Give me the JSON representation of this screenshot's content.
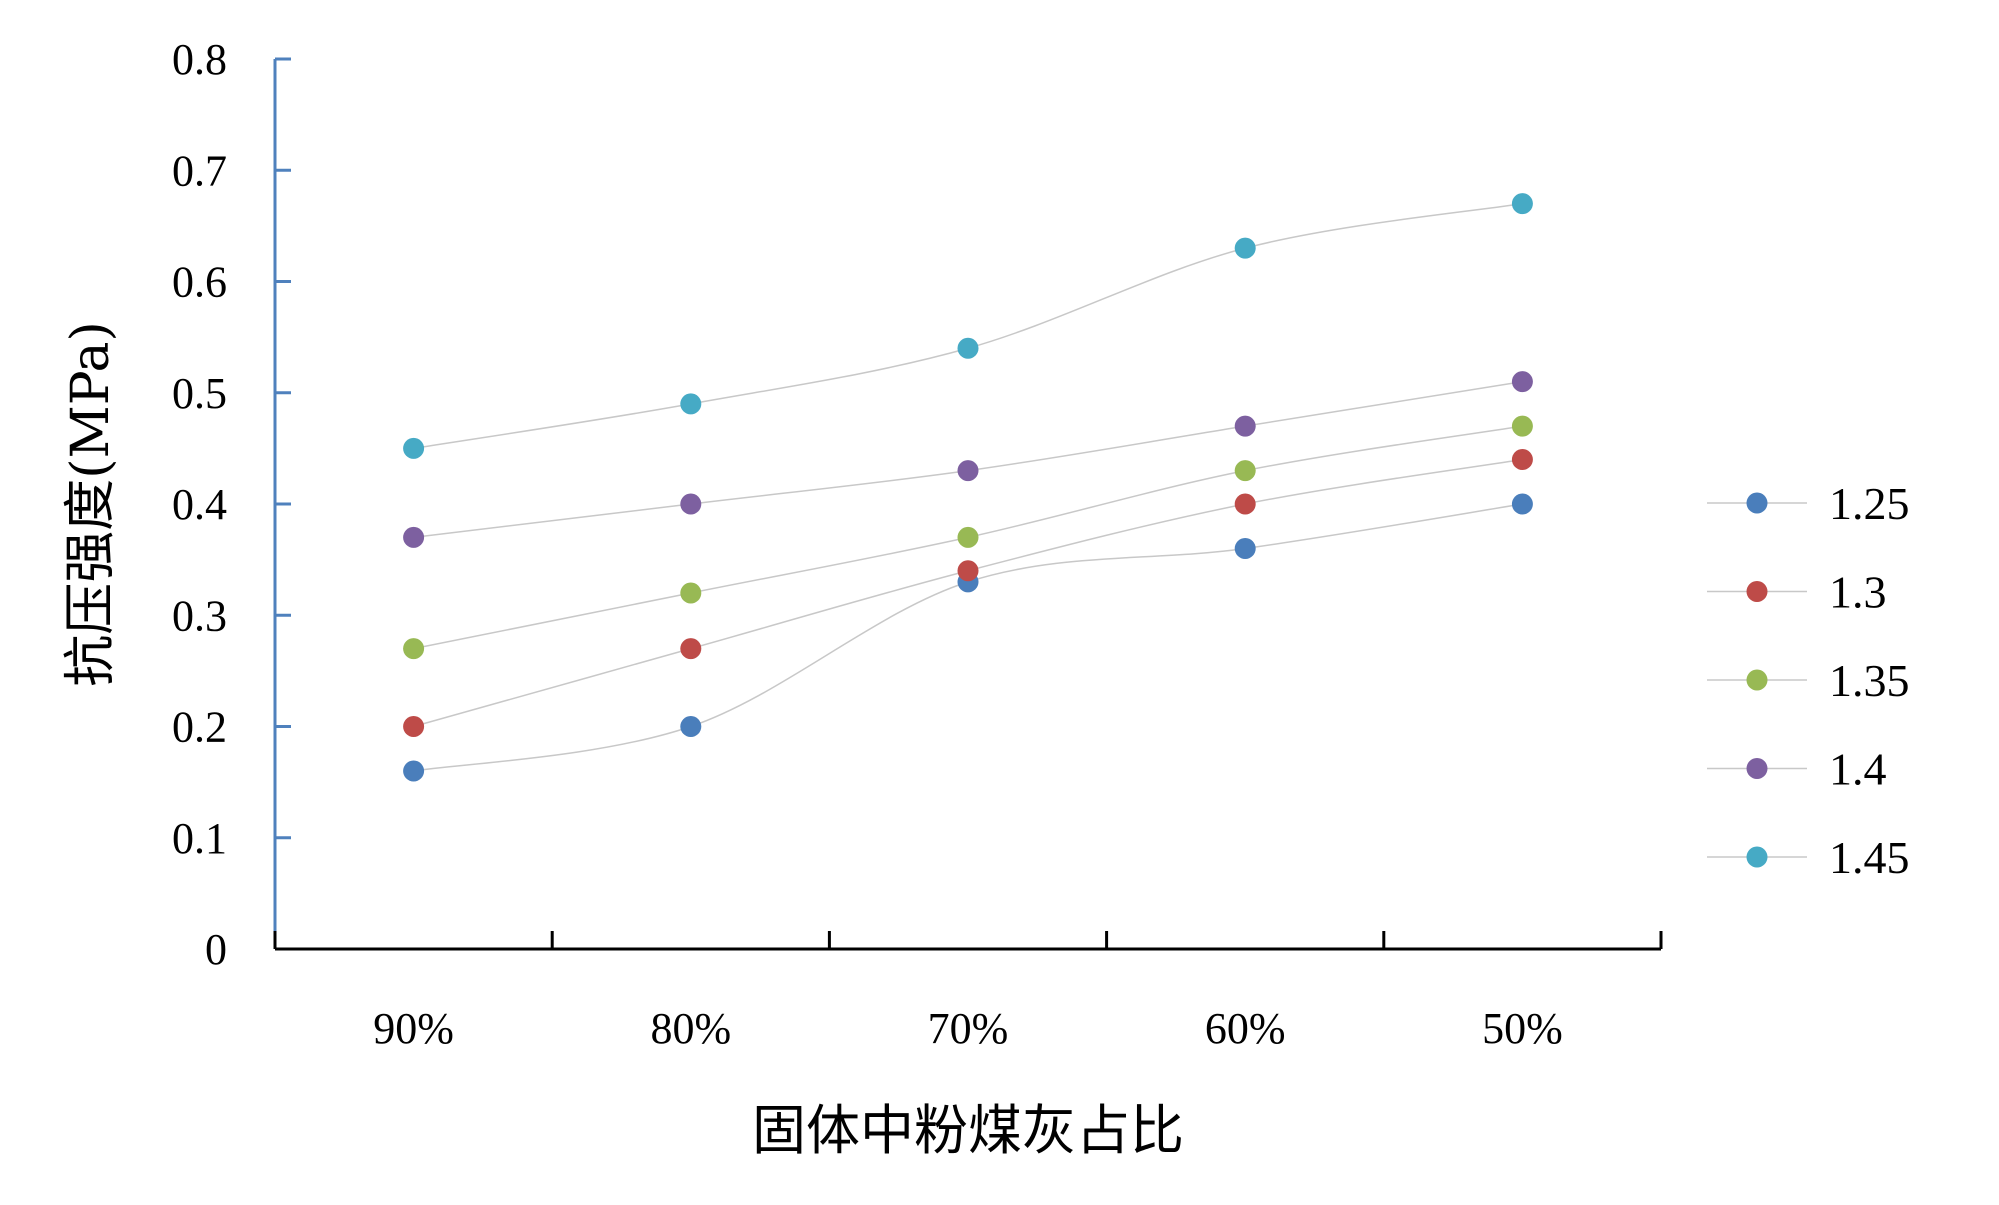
{
  "chart_data": {
    "type": "line",
    "categories": [
      "90%",
      "80%",
      "70%",
      "60%",
      "50%"
    ],
    "xlabel": "固体中粉煤灰占比",
    "ylabel": "抗压强度(MPa)",
    "ylim": [
      0,
      0.8
    ],
    "yticks": [
      "0",
      "0.1",
      "0.2",
      "0.3",
      "0.4",
      "0.5",
      "0.6",
      "0.7",
      "0.8"
    ],
    "smooth": true,
    "grid": false,
    "legend": "right",
    "series": [
      {
        "name": "1.25",
        "color": "#4a7ebb",
        "values": [
          0.16,
          0.2,
          0.33,
          0.36,
          0.4
        ]
      },
      {
        "name": "1.3",
        "color": "#be4b48",
        "values": [
          0.2,
          0.27,
          0.34,
          0.4,
          0.44
        ]
      },
      {
        "name": "1.35",
        "color": "#98b954",
        "values": [
          0.27,
          0.32,
          0.37,
          0.43,
          0.47
        ]
      },
      {
        "name": "1.4",
        "color": "#7d60a0",
        "values": [
          0.37,
          0.4,
          0.43,
          0.47,
          0.51
        ]
      },
      {
        "name": "1.45",
        "color": "#46aac5",
        "values": [
          0.45,
          0.49,
          0.54,
          0.63,
          0.67
        ]
      }
    ],
    "colors": {
      "y_axis": "#4f81bd",
      "x_axis": "#000000",
      "series_line": "#c8c8c8"
    }
  }
}
